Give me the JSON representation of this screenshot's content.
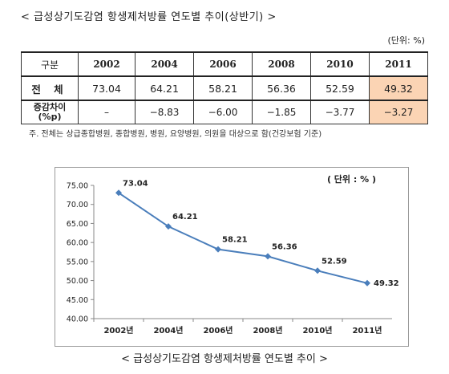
{
  "header": {
    "title": "< 급성상기도감염 항생제처방률 연도별 추이(상반기) >",
    "unit": "(단위: %)"
  },
  "table": {
    "corner": "구분",
    "years": [
      "2002",
      "2004",
      "2006",
      "2008",
      "2010",
      "2011"
    ],
    "rows": [
      {
        "label": "전 체",
        "values": [
          "73.04",
          "64.21",
          "58.21",
          "56.36",
          "52.59",
          "49.32"
        ]
      },
      {
        "label": "증감차이 (%p)",
        "values": [
          "–",
          "−8.83",
          "−6.00",
          "−1.85",
          "−3.77",
          "−3.27"
        ]
      }
    ],
    "highlight_color": "#fbd4b4"
  },
  "note": "주. 전체는 상급종합병원, 종합병원, 병원, 요양병원, 의원을 대상으로 함(건강보험 기준)",
  "caption": "< 급성상기도감염 항생제처방률 연도별 추이 >",
  "chart_data": {
    "type": "line",
    "categories": [
      "2002년",
      "2004년",
      "2006년",
      "2008년",
      "2010년",
      "2011년"
    ],
    "series": [
      {
        "values": [
          73.04,
          64.21,
          58.21,
          56.36,
          52.59,
          49.32
        ]
      }
    ],
    "data_labels": [
      "73.04",
      "64.21",
      "58.21",
      "56.36",
      "52.59",
      "49.32"
    ],
    "unit_label": "( 단위 : % )",
    "ylim": [
      40,
      75
    ],
    "yticks": [
      "40.00",
      "45.00",
      "50.00",
      "55.00",
      "60.00",
      "65.00",
      "70.00",
      "75.00"
    ],
    "grid": false,
    "line_color": "#4a7ebb"
  }
}
